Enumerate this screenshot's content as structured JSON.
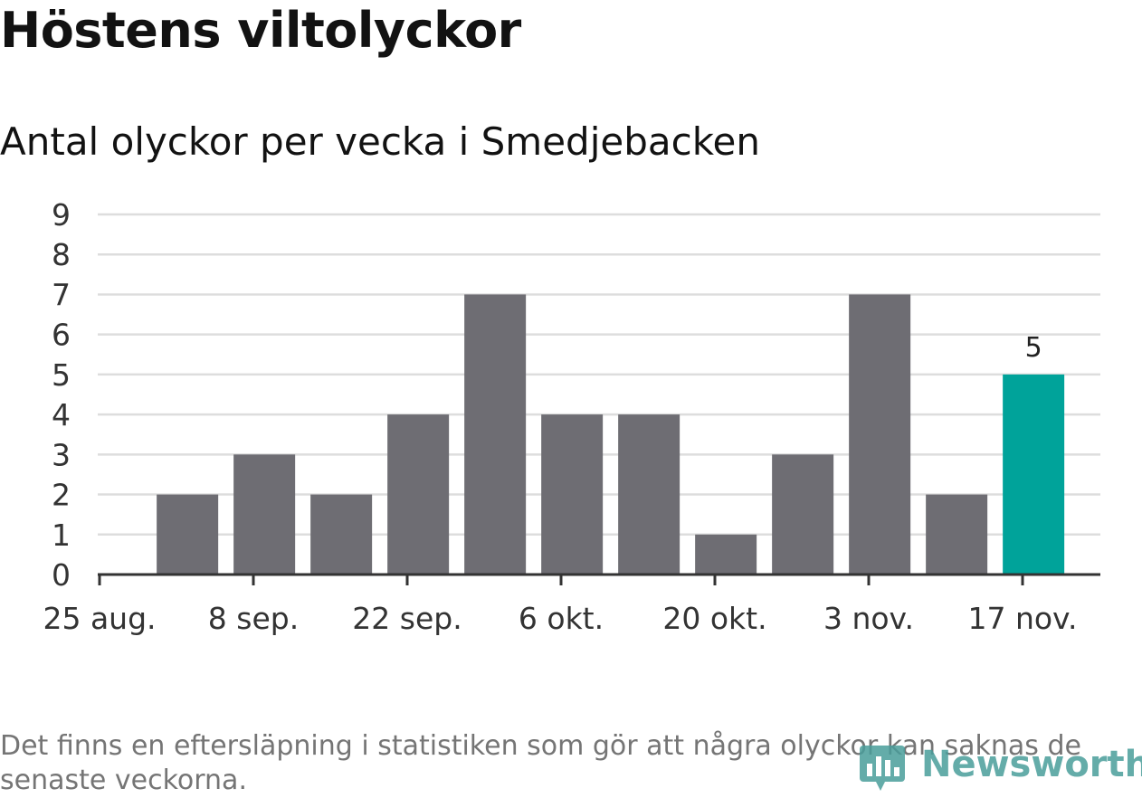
{
  "header": {
    "title": "Höstens viltolyckor",
    "subtitle": "Antal olyckor per vecka i Smedjebacken"
  },
  "footer": {
    "note": "Det finns en eftersläpning i statistiken som gör att några olyckor kan saknas de senaste veckorna.",
    "logo_text": "Newsworthy"
  },
  "colors": {
    "bar": "#6e6d73",
    "highlight": "#00a39a",
    "grid": "#dddddd",
    "axis": "#333333",
    "logo": "#4a9e9b"
  },
  "icons": {
    "logo": "newsworthy-bar-chart-icon"
  },
  "chart_data": {
    "type": "bar",
    "title": "Antal olyckor per vecka i Smedjebacken",
    "xlabel": "",
    "ylabel": "",
    "ylim": [
      0,
      9
    ],
    "yticks": [
      "0",
      "1",
      "2",
      "3",
      "4",
      "5",
      "6",
      "7",
      "8",
      "9"
    ],
    "xtick_labels": [
      "25 aug.",
      "8 sep.",
      "22 sep.",
      "6 okt.",
      "20 okt.",
      "3 nov.",
      "17 nov."
    ],
    "grid": true,
    "x": [
      "2019-09-02",
      "2019-09-09",
      "2019-09-16",
      "2019-09-23",
      "2019-09-30",
      "2019-10-07",
      "2019-10-14",
      "2019-10-21",
      "2019-10-28",
      "2019-11-04",
      "2019-11-11",
      "2019-11-18"
    ],
    "values": [
      2,
      3,
      2,
      4,
      7,
      4,
      4,
      1,
      3,
      7,
      2,
      5
    ],
    "highlight_last": true,
    "data_labels": [
      {
        "x": "2019-11-18",
        "text": "5"
      }
    ]
  }
}
